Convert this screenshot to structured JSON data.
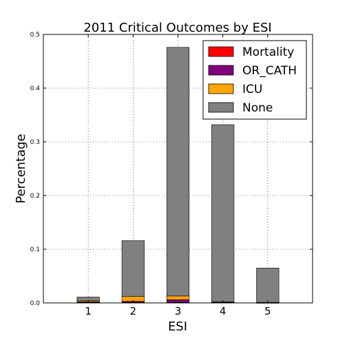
{
  "chart_data": {
    "type": "bar",
    "stacked": true,
    "title": "2011 Critical Outcomes by ESI",
    "xlabel": "ESI",
    "ylabel": "Percentage",
    "categories": [
      "1",
      "2",
      "3",
      "4",
      "5"
    ],
    "ylim": [
      0,
      0.5
    ],
    "yticks": [
      "0.0",
      "0.1",
      "0.2",
      "0.3",
      "0.4",
      "0.5"
    ],
    "grid": true,
    "legend_position": "top-right",
    "series": [
      {
        "name": "Mortality",
        "color": "#ff0000",
        "values": [
          0.001,
          0.001,
          0.001,
          0.0005,
          0.0002
        ]
      },
      {
        "name": "OR_CATH",
        "color": "#800080",
        "values": [
          0.001,
          0.002,
          0.005,
          0.001,
          0.0005
        ]
      },
      {
        "name": "ICU",
        "color": "#ffa500",
        "values": [
          0.002,
          0.009,
          0.007,
          0.0005,
          0.0003
        ]
      },
      {
        "name": "None",
        "color": "#808080",
        "values": [
          0.007,
          0.104,
          0.463,
          0.33,
          0.064
        ]
      }
    ]
  }
}
